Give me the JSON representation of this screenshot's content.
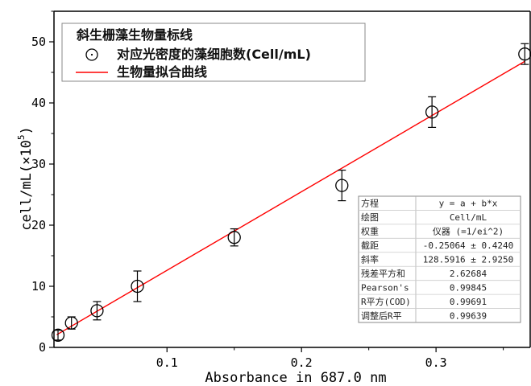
{
  "chart_data": {
    "type": "scatter",
    "xlabel": "Absorbance in 687.0 nm",
    "ylabel_main": "cell/mL(×10",
    "ylabel_sup": "5",
    "ylabel_close": ")",
    "xlim": [
      0.016,
      0.37
    ],
    "ylim": [
      0,
      55
    ],
    "x_ticks": [
      0.1,
      0.2,
      0.3
    ],
    "x_tick_labels": [
      "0.1",
      "0.2",
      "0.3"
    ],
    "y_ticks": [
      0,
      10,
      20,
      30,
      40,
      50
    ],
    "y_tick_labels": [
      "0",
      "10",
      "20",
      "30",
      "40",
      "50"
    ],
    "legend": {
      "title": "斜生栅藻生物量标线",
      "scatter_label": "对应光密度的藻细胞数(Cell/mL)",
      "line_label": "生物量拟合曲线",
      "placement": "top-left"
    },
    "series": [
      {
        "name": "对应光密度的藻细胞数(Cell/mL)",
        "kind": "scatter",
        "marker": "open-circle",
        "color": "#000000",
        "x": [
          0.019,
          0.029,
          0.048,
          0.078,
          0.15,
          0.23,
          0.297,
          0.366
        ],
        "y": [
          2.0,
          4.0,
          6.0,
          10.0,
          18.0,
          26.5,
          38.5,
          48.0
        ],
        "err": [
          0.8,
          1.0,
          1.5,
          2.5,
          1.4,
          2.5,
          2.5,
          1.7
        ]
      },
      {
        "name": "生物量拟合曲线",
        "kind": "line",
        "color": "#ff0000",
        "intercept": -0.25064,
        "slope": 128.5916,
        "x_range": [
          0.018,
          0.366
        ]
      }
    ],
    "stats_table": [
      [
        "方程",
        "y = a + b*x"
      ],
      [
        "绘图",
        "Cell/mL"
      ],
      [
        "权重",
        "仪器 (=1/ei^2)"
      ],
      [
        "截距",
        "-0.25064 ± 0.4240"
      ],
      [
        "斜率",
        "128.5916 ± 2.9250"
      ],
      [
        "残差平方和",
        "2.62684"
      ],
      [
        "Pearson's",
        "0.99845"
      ],
      [
        "R平方(COD)",
        "0.99691"
      ],
      [
        "调整后R平",
        "0.99639"
      ]
    ]
  }
}
